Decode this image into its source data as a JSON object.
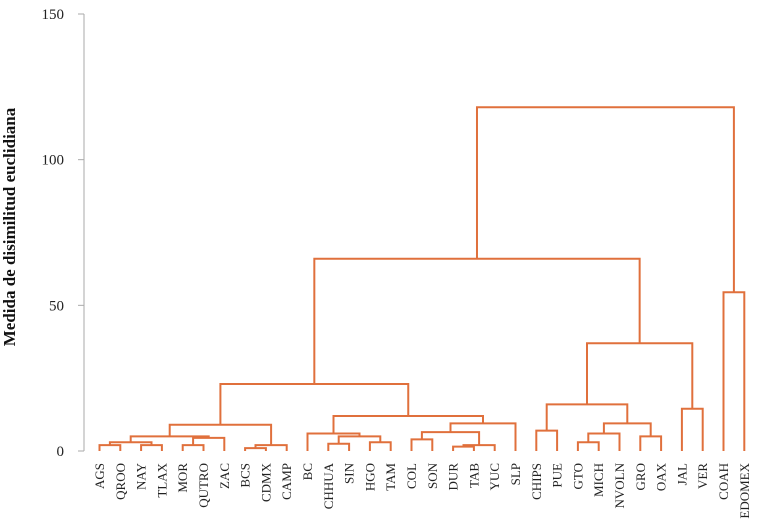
{
  "chart_data": {
    "type": "dendrogram",
    "ylabel": "Medida de disimilitud euclidiana",
    "ylim": [
      0,
      150
    ],
    "yticks": [
      0,
      50,
      100,
      150
    ],
    "color": "#e0703c",
    "leaves": [
      "AGS",
      "QROO",
      "NAY",
      "TLAX",
      "MOR",
      "QUTRO",
      "ZAC",
      "BCS",
      "CDMX",
      "CAMP",
      "BC",
      "CHHUA",
      "SIN",
      "HGO",
      "TAM",
      "COL",
      "SON",
      "DUR",
      "TAB",
      "YUC",
      "SLP",
      "CHIPS",
      "PUE",
      "GTO",
      "MICH",
      "NVOLN",
      "GRO",
      "OAX",
      "JAL",
      "VER",
      "COAH",
      "EDOMEX"
    ],
    "merges": [
      {
        "left": "AGS",
        "right": "QROO",
        "height": 2
      },
      {
        "left": "NAY",
        "right": "TLAX",
        "height": 2
      },
      {
        "left": "c1",
        "right": "c2",
        "height": 3
      },
      {
        "left": "MOR",
        "right": "QUTRO",
        "height": 2
      },
      {
        "left": "c4",
        "right": "ZAC",
        "height": 4.5
      },
      {
        "left": "c3",
        "right": "c5",
        "height": 5
      },
      {
        "left": "BCS",
        "right": "CDMX",
        "height": 1
      },
      {
        "left": "c7",
        "right": "CAMP",
        "height": 2
      },
      {
        "left": "c6",
        "right": "c8",
        "height": 9
      },
      {
        "left": "CHHUA",
        "right": "SIN",
        "height": 2.5
      },
      {
        "left": "HGO",
        "right": "TAM",
        "height": 3
      },
      {
        "left": "c10",
        "right": "c11",
        "height": 5
      },
      {
        "left": "BC",
        "right": "c12",
        "height": 6
      },
      {
        "left": "COL",
        "right": "SON",
        "height": 4
      },
      {
        "left": "DUR",
        "right": "TAB",
        "height": 1.5
      },
      {
        "left": "c15",
        "right": "YUC",
        "height": 2
      },
      {
        "left": "c14",
        "right": "c16",
        "height": 6.5
      },
      {
        "left": "c17",
        "right": "SLP",
        "height": 9.5
      },
      {
        "left": "c13",
        "right": "c18",
        "height": 12
      },
      {
        "left": "c9",
        "right": "c19",
        "height": 23
      },
      {
        "left": "CHIPS",
        "right": "PUE",
        "height": 7
      },
      {
        "left": "GTO",
        "right": "MICH",
        "height": 3
      },
      {
        "left": "c22",
        "right": "NVOLN",
        "height": 6
      },
      {
        "left": "GRO",
        "right": "OAX",
        "height": 5
      },
      {
        "left": "c23",
        "right": "c24",
        "height": 9.5
      },
      {
        "left": "c21",
        "right": "c25",
        "height": 16
      },
      {
        "left": "JAL",
        "right": "VER",
        "height": 14.5
      },
      {
        "left": "c26",
        "right": "c27",
        "height": 37
      },
      {
        "left": "c20",
        "right": "c28",
        "height": 66
      },
      {
        "left": "COAH",
        "right": "EDOMEX",
        "height": 54.5
      },
      {
        "left": "c29",
        "right": "c30",
        "height": 118
      }
    ]
  }
}
